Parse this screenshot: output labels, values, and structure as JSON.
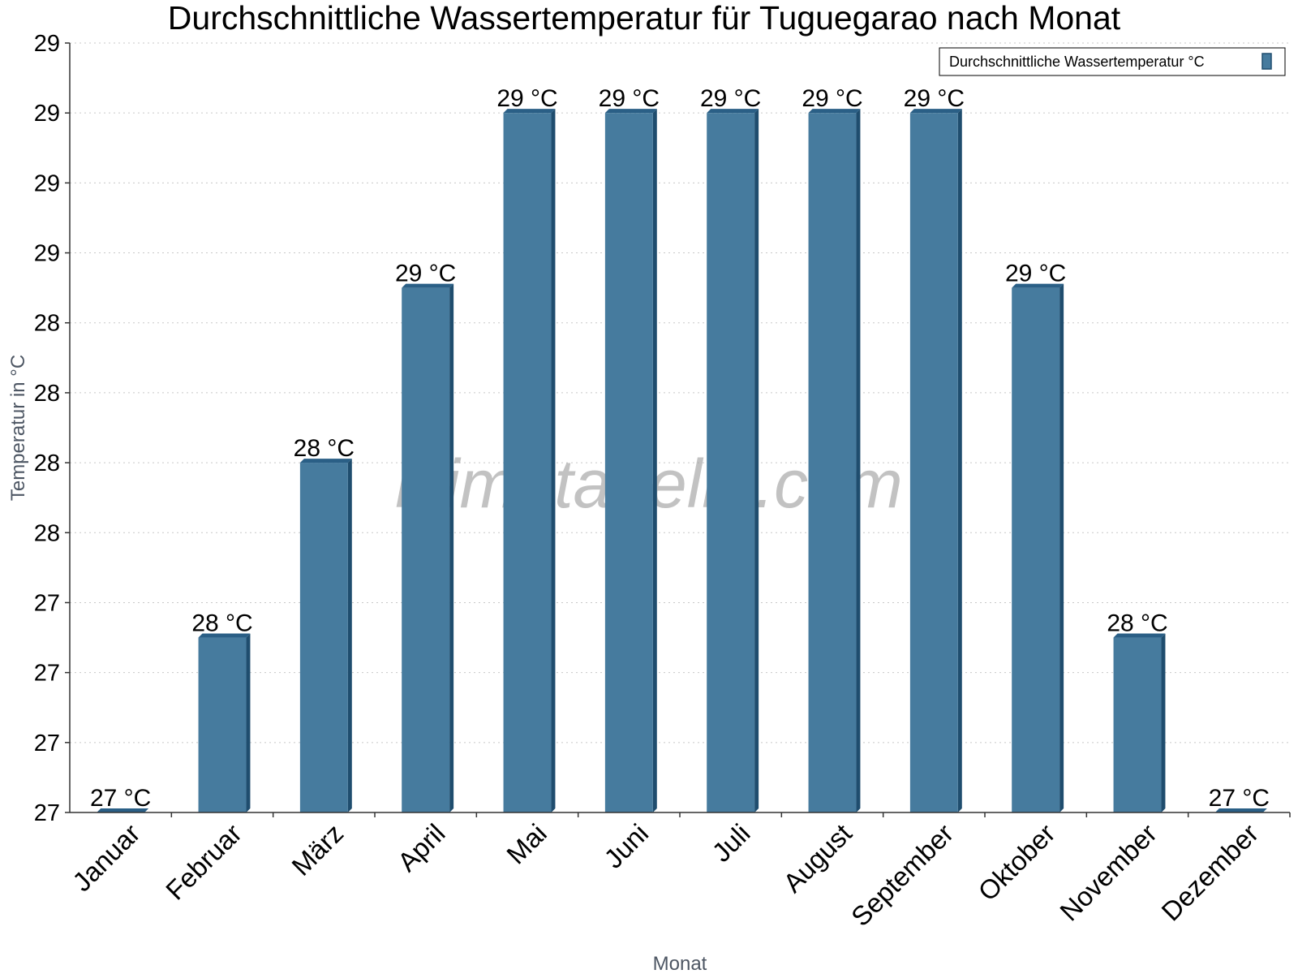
{
  "chart_data": {
    "type": "bar",
    "title": "Durchschnittliche Wassertemperatur für Tuguegarao nach Monat",
    "xlabel": "Monat",
    "ylabel": "Temperatur in °C",
    "categories": [
      "Januar",
      "Februar",
      "März",
      "April",
      "Mai",
      "Juni",
      "Juli",
      "August",
      "September",
      "Oktober",
      "November",
      "Dezember"
    ],
    "series": [
      {
        "name": "Durchschnittliche Wassertemperatur °C",
        "values": [
          27.0,
          27.5,
          28.0,
          28.5,
          29.0,
          29.0,
          29.0,
          29.0,
          29.0,
          28.5,
          27.5,
          27.0
        ],
        "labels": [
          "27 °C",
          "28 °C",
          "28 °C",
          "29 °C",
          "29 °C",
          "29 °C",
          "29 °C",
          "29 °C",
          "29 °C",
          "29 °C",
          "28 °C",
          "27 °C"
        ]
      }
    ],
    "ylim": [
      27.0,
      29.2
    ],
    "yticks": [
      27.0,
      27.2,
      27.4,
      27.6,
      27.8,
      28.0,
      28.2,
      28.4,
      28.6,
      28.8,
      29.0,
      29.2
    ],
    "ytick_labels": [
      "27",
      "27",
      "27",
      "27",
      "28",
      "28",
      "28",
      "28",
      "29",
      "29",
      "29",
      "29"
    ],
    "grid": true,
    "legend_position": "top-right",
    "colors": {
      "bar": "#467b9e",
      "bar_side": "#1f4d6e",
      "bar_top": "#2a5f86"
    }
  },
  "watermark": "klimatabelle.com"
}
